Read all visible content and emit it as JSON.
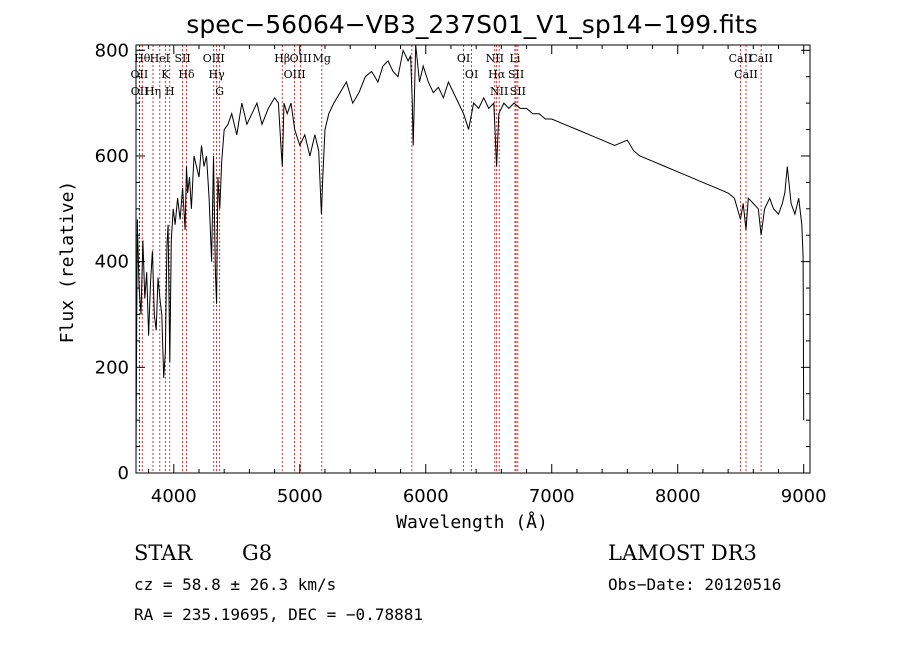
{
  "chart_data": {
    "type": "line",
    "title": "spec−56064−VB3_237S01_V1_sp14−199.fits",
    "xlabel": "Wavelength (Å)",
    "ylabel": "Flux (relative)",
    "xlim": [
      3700,
      9050
    ],
    "ylim": [
      0,
      810
    ],
    "xticks": [
      4000,
      5000,
      6000,
      7000,
      8000,
      9000
    ],
    "yticks": [
      0,
      200,
      400,
      600,
      800
    ],
    "xtick_labels": [
      "4000",
      "5000",
      "6000",
      "7000",
      "8000",
      "9000"
    ],
    "ytick_labels": [
      "0",
      "200",
      "400",
      "600",
      "800"
    ],
    "series": [
      {
        "name": "flux",
        "color": "#000000",
        "x": [
          3700,
          3710,
          3725,
          3740,
          3755,
          3770,
          3785,
          3800,
          3815,
          3830,
          3845,
          3860,
          3875,
          3890,
          3905,
          3920,
          3933,
          3945,
          3955,
          3968,
          3980,
          3995,
          4010,
          4030,
          4050,
          4070,
          4090,
          4101,
          4110,
          4125,
          4140,
          4160,
          4180,
          4200,
          4220,
          4240,
          4260,
          4280,
          4300,
          4315,
          4330,
          4340,
          4350,
          4365,
          4380,
          4400,
          4430,
          4460,
          4500,
          4540,
          4580,
          4620,
          4660,
          4700,
          4750,
          4800,
          4830,
          4850,
          4861,
          4875,
          4900,
          4930,
          4960,
          5000,
          5040,
          5080,
          5120,
          5150,
          5172,
          5183,
          5200,
          5230,
          5270,
          5320,
          5370,
          5420,
          5470,
          5520,
          5570,
          5620,
          5660,
          5700,
          5740,
          5780,
          5820,
          5860,
          5880,
          5893,
          5900,
          5920,
          5950,
          5980,
          6020,
          6060,
          6100,
          6140,
          6180,
          6220,
          6260,
          6300,
          6340,
          6380,
          6420,
          6460,
          6500,
          6540,
          6562,
          6580,
          6620,
          6660,
          6700,
          6750,
          6800,
          6850,
          6900,
          6950,
          7000,
          7100,
          7200,
          7300,
          7400,
          7500,
          7600,
          7650,
          7700,
          7800,
          7900,
          8000,
          8100,
          8200,
          8300,
          8400,
          8450,
          8498,
          8520,
          8542,
          8560,
          8600,
          8640,
          8662,
          8690,
          8730,
          8760,
          8800,
          8830,
          8850,
          8870,
          8900,
          8930,
          8960,
          8985,
          8995,
          9000
        ],
        "y": [
          30,
          480,
          350,
          300,
          440,
          330,
          380,
          260,
          360,
          420,
          300,
          270,
          370,
          330,
          300,
          180,
          230,
          430,
          470,
          210,
          440,
          500,
          470,
          520,
          480,
          540,
          460,
          580,
          530,
          560,
          500,
          600,
          580,
          560,
          620,
          580,
          600,
          520,
          400,
          600,
          380,
          320,
          560,
          500,
          590,
          650,
          660,
          680,
          640,
          700,
          660,
          680,
          700,
          660,
          690,
          710,
          700,
          620,
          580,
          700,
          680,
          700,
          650,
          620,
          640,
          600,
          640,
          610,
          490,
          560,
          650,
          680,
          700,
          720,
          740,
          700,
          720,
          750,
          760,
          740,
          770,
          780,
          760,
          750,
          800,
          780,
          790,
          700,
          620,
          810,
          740,
          770,
          740,
          720,
          730,
          710,
          740,
          720,
          700,
          680,
          650,
          700,
          690,
          710,
          690,
          700,
          580,
          680,
          700,
          690,
          700,
          690,
          690,
          680,
          680,
          670,
          670,
          660,
          650,
          640,
          630,
          620,
          630,
          610,
          600,
          590,
          580,
          570,
          560,
          550,
          540,
          530,
          520,
          480,
          510,
          460,
          520,
          510,
          500,
          450,
          500,
          520,
          500,
          490,
          510,
          530,
          580,
          510,
          490,
          520,
          470,
          410,
          100
        ]
      }
    ],
    "lines": [
      {
        "x": 3750,
        "label": "Hθ"
      },
      {
        "x": 3727,
        "label": "OII"
      },
      {
        "x": 3729,
        "label": "OII"
      },
      {
        "x": 3835,
        "label": "Hη"
      },
      {
        "x": 3889,
        "label": "HeI"
      },
      {
        "x": 3933,
        "label": "K"
      },
      {
        "x": 3968,
        "label": "H"
      },
      {
        "x": 4070,
        "label": "SII"
      },
      {
        "x": 4101,
        "label": "Hδ"
      },
      {
        "x": 4317,
        "label": "OIII"
      },
      {
        "x": 4340,
        "label": "Hγ"
      },
      {
        "x": 4364,
        "label": "G"
      },
      {
        "x": 4861,
        "label": "Hβ"
      },
      {
        "x": 4959,
        "label": "OIII"
      },
      {
        "x": 5007,
        "label": "OIII"
      },
      {
        "x": 5175,
        "label": "Mg"
      },
      {
        "x": 5890,
        "label": ""
      },
      {
        "x": 6300,
        "label": "OI"
      },
      {
        "x": 6364,
        "label": "OI"
      },
      {
        "x": 6548,
        "label": "NII"
      },
      {
        "x": 6563,
        "label": "Hα"
      },
      {
        "x": 6583,
        "label": "NII"
      },
      {
        "x": 6708,
        "label": "Li"
      },
      {
        "x": 6717,
        "label": "SII"
      },
      {
        "x": 6731,
        "label": "SII"
      },
      {
        "x": 8498,
        "label": "CaII"
      },
      {
        "x": 8542,
        "label": "CaII"
      },
      {
        "x": 8662,
        "label": "CaII"
      }
    ]
  },
  "annotations": {
    "object_class": "STAR",
    "subclass": "G8",
    "survey": "LAMOST DR3",
    "redshift_text": "cz = 58.8 ± 26.3 km/s",
    "obs_date": "Obs−Date: 20120516",
    "coordinates": "RA = 235.19695, DEC =  −0.78881"
  }
}
